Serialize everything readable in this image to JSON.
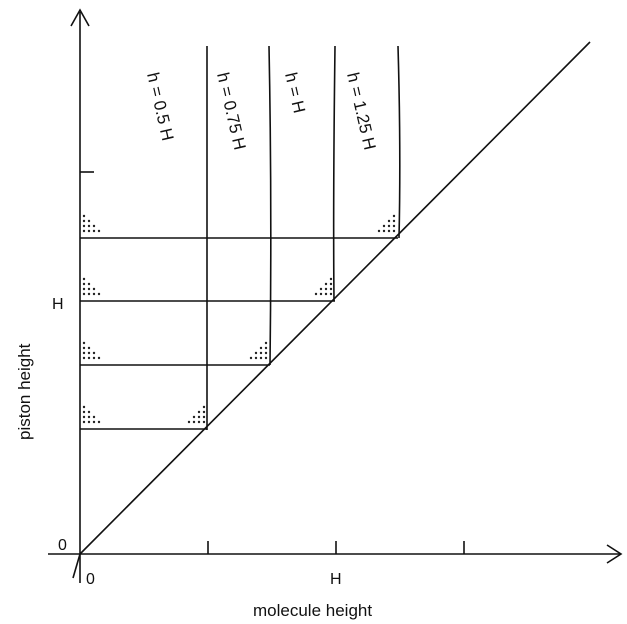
{
  "diagram": {
    "axes": {
      "x_label": "molecule height",
      "y_label": "piston height",
      "x_ticks": [
        "0",
        "H"
      ],
      "y_ticks": [
        "0",
        "H"
      ]
    },
    "curves": [
      {
        "label": "h = 0.5 H",
        "ratio": 0.5
      },
      {
        "label": "h = 0.75 H",
        "ratio": 0.75
      },
      {
        "label": "h = H",
        "ratio": 1.0
      },
      {
        "label": "h = 1.25 H",
        "ratio": 1.25
      }
    ],
    "line_color": "#111111",
    "background": "#ffffff"
  }
}
